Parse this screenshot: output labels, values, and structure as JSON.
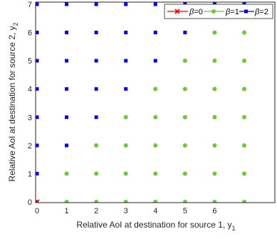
{
  "chart_data": {
    "type": "scatter",
    "xlabel": "Relative AoI at destination for source 1, y",
    "xlabel_sub": "1",
    "ylabel": "Relative AoI at destination  for source 2, y",
    "ylabel_sub": "2",
    "xlim": [
      0,
      7
    ],
    "ylim": [
      0,
      7
    ],
    "xticks": [
      "0",
      "1",
      "2",
      "3",
      "4",
      "5",
      "6"
    ],
    "yticks": [
      "0",
      "1",
      "2",
      "3",
      "4",
      "5",
      "6",
      "7"
    ],
    "grid": false,
    "legend_position": "top-right",
    "series": [
      {
        "name": "β=0",
        "greek": "β",
        "suffix": "=0",
        "color": "#ff0000",
        "marker": "x",
        "points": [
          [
            0,
            0
          ]
        ]
      },
      {
        "name": "β=1",
        "greek": "β",
        "suffix": "=1",
        "color": "#66cc33",
        "marker": "circle",
        "points": [
          [
            1,
            0
          ],
          [
            2,
            0
          ],
          [
            3,
            0
          ],
          [
            4,
            0
          ],
          [
            5,
            0
          ],
          [
            6,
            0
          ],
          [
            7,
            0
          ],
          [
            1,
            1
          ],
          [
            2,
            1
          ],
          [
            3,
            1
          ],
          [
            4,
            1
          ],
          [
            5,
            1
          ],
          [
            6,
            1
          ],
          [
            7,
            1
          ],
          [
            2,
            2
          ],
          [
            3,
            2
          ],
          [
            4,
            2
          ],
          [
            5,
            2
          ],
          [
            6,
            2
          ],
          [
            7,
            2
          ],
          [
            3,
            3
          ],
          [
            4,
            3
          ],
          [
            5,
            3
          ],
          [
            6,
            3
          ],
          [
            7,
            3
          ],
          [
            4,
            4
          ],
          [
            5,
            4
          ],
          [
            6,
            4
          ],
          [
            7,
            4
          ],
          [
            5,
            5
          ],
          [
            6,
            5
          ],
          [
            7,
            5
          ],
          [
            6,
            6
          ],
          [
            7,
            6
          ]
        ]
      },
      {
        "name": "β=2",
        "greek": "β",
        "suffix": "=2",
        "color": "#0000ff",
        "marker": "square",
        "points": [
          [
            0,
            1
          ],
          [
            0,
            2
          ],
          [
            0,
            3
          ],
          [
            0,
            4
          ],
          [
            0,
            5
          ],
          [
            0,
            6
          ],
          [
            0,
            7
          ],
          [
            1,
            2
          ],
          [
            1,
            3
          ],
          [
            1,
            4
          ],
          [
            1,
            5
          ],
          [
            1,
            6
          ],
          [
            1,
            7
          ],
          [
            2,
            3
          ],
          [
            2,
            4
          ],
          [
            2,
            5
          ],
          [
            2,
            6
          ],
          [
            2,
            7
          ],
          [
            3,
            4
          ],
          [
            3,
            5
          ],
          [
            3,
            6
          ],
          [
            3,
            7
          ],
          [
            4,
            5
          ],
          [
            4,
            6
          ],
          [
            4,
            7
          ],
          [
            5,
            6
          ],
          [
            5,
            7
          ],
          [
            6,
            7
          ],
          [
            7,
            7
          ]
        ]
      }
    ]
  }
}
